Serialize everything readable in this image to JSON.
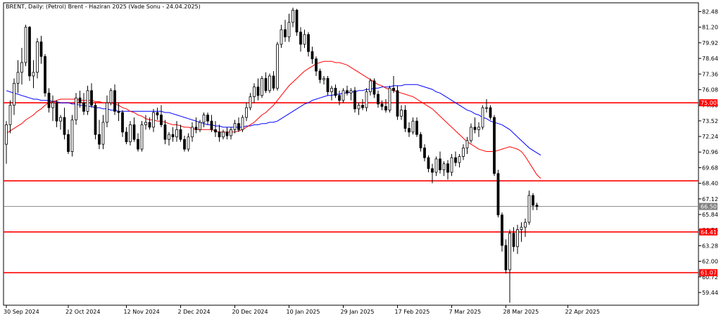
{
  "chart_data": {
    "type": "candlestick",
    "title": "BRENT, Daily:  (Petrol) Brent - Haziran 2025 (Vade Sonu - 24.04.2025)",
    "y_ticks": [
      "82.48",
      "81.20",
      "79.92",
      "78.64",
      "77.36",
      "76.08",
      "74.80",
      "73.52",
      "72.24",
      "70.96",
      "69.68",
      "68.40",
      "67.12",
      "65.84",
      "64.56",
      "63.28",
      "62.00",
      "60.72",
      "59.44"
    ],
    "x_ticks": [
      "30 Sep 2024",
      "22 Oct 2024",
      "12 Nov 2024",
      "2 Dec 2024",
      "20 Dec 2024",
      "10 Jan 2025",
      "29 Jan 2025",
      "17 Feb 2025",
      "7 Mar 2025",
      "28 Mar 2025",
      "22 Apr 2025"
    ],
    "x_tick_index": [
      0,
      16,
      31,
      45,
      59,
      73,
      87,
      101,
      115,
      129,
      145
    ],
    "ylim": [
      58.4,
      83.2
    ],
    "grid": false,
    "horizontal_levels": [
      {
        "value": 75.0,
        "label": "75.00",
        "color": "#ff0000"
      },
      {
        "value": 68.6,
        "label": "",
        "color": "#ff0000"
      },
      {
        "value": 64.41,
        "label": "64.41",
        "color": "#ff0000"
      },
      {
        "value": 61.07,
        "label": "61.07",
        "color": "#ff0000"
      }
    ],
    "current_price": {
      "value": 66.5,
      "label": "66.50",
      "color": "#808080"
    },
    "candles": [
      {
        "o": 71.6,
        "h": 73.5,
        "l": 70.0,
        "c": 73.2
      },
      {
        "o": 73.2,
        "h": 75.2,
        "l": 72.5,
        "c": 74.8
      },
      {
        "o": 74.8,
        "h": 77.0,
        "l": 74.0,
        "c": 76.6
      },
      {
        "o": 76.6,
        "h": 78.5,
        "l": 75.8,
        "c": 77.5
      },
      {
        "o": 77.5,
        "h": 79.5,
        "l": 76.5,
        "c": 78.3
      },
      {
        "o": 78.3,
        "h": 81.4,
        "l": 78.0,
        "c": 81.2
      },
      {
        "o": 81.2,
        "h": 81.3,
        "l": 76.8,
        "c": 77.2
      },
      {
        "o": 77.2,
        "h": 78.5,
        "l": 76.2,
        "c": 77.5
      },
      {
        "o": 77.5,
        "h": 80.3,
        "l": 77.0,
        "c": 80.0
      },
      {
        "o": 80.0,
        "h": 80.5,
        "l": 78.2,
        "c": 78.8
      },
      {
        "o": 78.8,
        "h": 79.0,
        "l": 75.5,
        "c": 75.8
      },
      {
        "o": 75.8,
        "h": 76.2,
        "l": 74.2,
        "c": 74.6
      },
      {
        "o": 74.6,
        "h": 75.6,
        "l": 73.5,
        "c": 75.0
      },
      {
        "o": 75.0,
        "h": 75.2,
        "l": 73.0,
        "c": 73.5
      },
      {
        "o": 73.5,
        "h": 74.0,
        "l": 72.8,
        "c": 73.8
      },
      {
        "o": 73.8,
        "h": 74.6,
        "l": 72.0,
        "c": 72.4
      },
      {
        "o": 72.4,
        "h": 72.8,
        "l": 70.8,
        "c": 71.0
      },
      {
        "o": 71.0,
        "h": 74.0,
        "l": 70.6,
        "c": 73.6
      },
      {
        "o": 73.6,
        "h": 75.8,
        "l": 73.2,
        "c": 75.4
      },
      {
        "o": 75.4,
        "h": 76.0,
        "l": 74.6,
        "c": 75.0
      },
      {
        "o": 75.0,
        "h": 75.8,
        "l": 74.0,
        "c": 74.3
      },
      {
        "o": 74.3,
        "h": 76.4,
        "l": 74.0,
        "c": 76.0
      },
      {
        "o": 76.0,
        "h": 76.6,
        "l": 74.6,
        "c": 74.8
      },
      {
        "o": 74.8,
        "h": 75.0,
        "l": 72.0,
        "c": 72.4
      },
      {
        "o": 72.4,
        "h": 73.6,
        "l": 71.2,
        "c": 71.6
      },
      {
        "o": 71.6,
        "h": 74.0,
        "l": 71.2,
        "c": 73.4
      },
      {
        "o": 73.4,
        "h": 75.6,
        "l": 73.0,
        "c": 75.0
      },
      {
        "o": 75.0,
        "h": 76.2,
        "l": 74.8,
        "c": 76.0
      },
      {
        "o": 76.0,
        "h": 76.5,
        "l": 74.0,
        "c": 74.3
      },
      {
        "o": 74.3,
        "h": 75.0,
        "l": 73.5,
        "c": 74.2
      },
      {
        "o": 74.2,
        "h": 74.4,
        "l": 72.2,
        "c": 72.6
      },
      {
        "o": 72.6,
        "h": 73.0,
        "l": 71.6,
        "c": 71.8
      },
      {
        "o": 71.8,
        "h": 73.5,
        "l": 71.5,
        "c": 73.2
      },
      {
        "o": 73.2,
        "h": 73.8,
        "l": 71.8,
        "c": 72.0
      },
      {
        "o": 72.0,
        "h": 72.5,
        "l": 71.0,
        "c": 71.2
      },
      {
        "o": 71.2,
        "h": 73.5,
        "l": 71.0,
        "c": 73.2
      },
      {
        "o": 73.2,
        "h": 74.0,
        "l": 72.8,
        "c": 73.4
      },
      {
        "o": 73.4,
        "h": 73.8,
        "l": 72.8,
        "c": 73.0
      },
      {
        "o": 73.0,
        "h": 74.5,
        "l": 72.6,
        "c": 74.2
      },
      {
        "o": 74.2,
        "h": 74.6,
        "l": 73.6,
        "c": 74.0
      },
      {
        "o": 74.0,
        "h": 74.8,
        "l": 73.0,
        "c": 73.2
      },
      {
        "o": 73.2,
        "h": 73.6,
        "l": 71.6,
        "c": 72.0
      },
      {
        "o": 72.0,
        "h": 72.6,
        "l": 71.5,
        "c": 72.4
      },
      {
        "o": 72.4,
        "h": 73.0,
        "l": 71.8,
        "c": 72.2
      },
      {
        "o": 72.2,
        "h": 73.5,
        "l": 71.8,
        "c": 72.8
      },
      {
        "o": 72.8,
        "h": 73.2,
        "l": 71.8,
        "c": 72.0
      },
      {
        "o": 72.0,
        "h": 72.3,
        "l": 71.0,
        "c": 71.2
      },
      {
        "o": 71.2,
        "h": 72.5,
        "l": 71.0,
        "c": 72.2
      },
      {
        "o": 72.2,
        "h": 73.4,
        "l": 71.8,
        "c": 73.0
      },
      {
        "o": 73.0,
        "h": 73.8,
        "l": 72.5,
        "c": 72.8
      },
      {
        "o": 72.8,
        "h": 73.6,
        "l": 72.6,
        "c": 73.4
      },
      {
        "o": 73.4,
        "h": 74.2,
        "l": 73.0,
        "c": 74.0
      },
      {
        "o": 74.0,
        "h": 74.2,
        "l": 73.2,
        "c": 73.5
      },
      {
        "o": 73.5,
        "h": 74.0,
        "l": 72.6,
        "c": 72.8
      },
      {
        "o": 72.8,
        "h": 73.5,
        "l": 72.2,
        "c": 72.6
      },
      {
        "o": 72.6,
        "h": 73.2,
        "l": 71.8,
        "c": 72.2
      },
      {
        "o": 72.2,
        "h": 72.8,
        "l": 72.0,
        "c": 72.6
      },
      {
        "o": 72.6,
        "h": 73.0,
        "l": 72.0,
        "c": 72.3
      },
      {
        "o": 72.3,
        "h": 73.0,
        "l": 72.0,
        "c": 72.8
      },
      {
        "o": 72.8,
        "h": 73.6,
        "l": 72.5,
        "c": 73.3
      },
      {
        "o": 73.3,
        "h": 73.8,
        "l": 72.6,
        "c": 72.8
      },
      {
        "o": 72.8,
        "h": 74.0,
        "l": 72.6,
        "c": 73.8
      },
      {
        "o": 73.8,
        "h": 75.0,
        "l": 73.5,
        "c": 74.6
      },
      {
        "o": 74.6,
        "h": 75.8,
        "l": 74.4,
        "c": 75.5
      },
      {
        "o": 75.5,
        "h": 76.6,
        "l": 75.0,
        "c": 76.3
      },
      {
        "o": 76.3,
        "h": 77.0,
        "l": 75.2,
        "c": 75.6
      },
      {
        "o": 75.6,
        "h": 77.2,
        "l": 75.4,
        "c": 77.0
      },
      {
        "o": 77.0,
        "h": 77.5,
        "l": 75.8,
        "c": 76.0
      },
      {
        "o": 76.0,
        "h": 77.4,
        "l": 75.8,
        "c": 77.2
      },
      {
        "o": 77.2,
        "h": 77.6,
        "l": 76.0,
        "c": 76.2
      },
      {
        "o": 76.2,
        "h": 80.0,
        "l": 76.0,
        "c": 79.8
      },
      {
        "o": 79.8,
        "h": 81.4,
        "l": 79.5,
        "c": 81.0
      },
      {
        "o": 81.0,
        "h": 81.8,
        "l": 80.0,
        "c": 80.4
      },
      {
        "o": 80.4,
        "h": 82.3,
        "l": 80.0,
        "c": 81.6
      },
      {
        "o": 81.6,
        "h": 82.8,
        "l": 81.2,
        "c": 82.6
      },
      {
        "o": 82.6,
        "h": 82.7,
        "l": 80.5,
        "c": 80.8
      },
      {
        "o": 80.8,
        "h": 81.2,
        "l": 79.2,
        "c": 79.8
      },
      {
        "o": 79.8,
        "h": 81.0,
        "l": 79.5,
        "c": 80.6
      },
      {
        "o": 80.6,
        "h": 80.8,
        "l": 78.8,
        "c": 79.2
      },
      {
        "o": 79.2,
        "h": 79.6,
        "l": 78.2,
        "c": 78.6
      },
      {
        "o": 78.6,
        "h": 78.8,
        "l": 77.2,
        "c": 77.6
      },
      {
        "o": 77.6,
        "h": 77.8,
        "l": 76.6,
        "c": 76.9
      },
      {
        "o": 76.9,
        "h": 77.2,
        "l": 76.5,
        "c": 77.0
      },
      {
        "o": 77.0,
        "h": 77.2,
        "l": 75.6,
        "c": 75.9
      },
      {
        "o": 75.9,
        "h": 76.4,
        "l": 75.2,
        "c": 76.2
      },
      {
        "o": 76.2,
        "h": 76.5,
        "l": 75.4,
        "c": 75.6
      },
      {
        "o": 75.6,
        "h": 76.0,
        "l": 74.8,
        "c": 75.2
      },
      {
        "o": 75.2,
        "h": 76.2,
        "l": 75.0,
        "c": 76.0
      },
      {
        "o": 76.0,
        "h": 76.4,
        "l": 75.6,
        "c": 75.8
      },
      {
        "o": 75.8,
        "h": 76.2,
        "l": 75.2,
        "c": 76.0
      },
      {
        "o": 76.0,
        "h": 76.3,
        "l": 74.2,
        "c": 74.5
      },
      {
        "o": 74.5,
        "h": 75.0,
        "l": 74.0,
        "c": 74.8
      },
      {
        "o": 74.8,
        "h": 75.3,
        "l": 74.4,
        "c": 74.6
      },
      {
        "o": 74.6,
        "h": 76.2,
        "l": 74.3,
        "c": 75.9
      },
      {
        "o": 75.9,
        "h": 77.0,
        "l": 75.6,
        "c": 76.8
      },
      {
        "o": 76.8,
        "h": 77.0,
        "l": 75.4,
        "c": 75.7
      },
      {
        "o": 75.7,
        "h": 76.0,
        "l": 74.6,
        "c": 74.9
      },
      {
        "o": 74.9,
        "h": 75.2,
        "l": 74.4,
        "c": 74.7
      },
      {
        "o": 74.7,
        "h": 75.3,
        "l": 74.2,
        "c": 74.4
      },
      {
        "o": 74.4,
        "h": 76.4,
        "l": 74.2,
        "c": 76.2
      },
      {
        "o": 76.2,
        "h": 77.2,
        "l": 75.8,
        "c": 76.0
      },
      {
        "o": 76.0,
        "h": 76.4,
        "l": 73.6,
        "c": 73.9
      },
      {
        "o": 73.9,
        "h": 74.8,
        "l": 73.6,
        "c": 74.4
      },
      {
        "o": 74.4,
        "h": 74.8,
        "l": 72.6,
        "c": 72.9
      },
      {
        "o": 72.9,
        "h": 73.4,
        "l": 72.2,
        "c": 72.6
      },
      {
        "o": 72.6,
        "h": 73.8,
        "l": 72.4,
        "c": 73.5
      },
      {
        "o": 73.5,
        "h": 73.8,
        "l": 72.2,
        "c": 72.4
      },
      {
        "o": 72.4,
        "h": 72.6,
        "l": 71.0,
        "c": 71.3
      },
      {
        "o": 71.3,
        "h": 71.6,
        "l": 70.2,
        "c": 70.5
      },
      {
        "o": 70.5,
        "h": 70.7,
        "l": 69.3,
        "c": 69.6
      },
      {
        "o": 69.6,
        "h": 70.0,
        "l": 68.4,
        "c": 69.3
      },
      {
        "o": 69.3,
        "h": 70.6,
        "l": 69.0,
        "c": 70.4
      },
      {
        "o": 70.4,
        "h": 71.0,
        "l": 69.2,
        "c": 69.5
      },
      {
        "o": 69.5,
        "h": 70.2,
        "l": 69.0,
        "c": 70.0
      },
      {
        "o": 70.0,
        "h": 70.3,
        "l": 68.7,
        "c": 69.3
      },
      {
        "o": 69.3,
        "h": 70.8,
        "l": 69.0,
        "c": 70.5
      },
      {
        "o": 70.5,
        "h": 71.0,
        "l": 69.8,
        "c": 70.1
      },
      {
        "o": 70.1,
        "h": 70.8,
        "l": 69.7,
        "c": 70.6
      },
      {
        "o": 70.6,
        "h": 71.6,
        "l": 70.3,
        "c": 71.3
      },
      {
        "o": 71.3,
        "h": 72.2,
        "l": 70.8,
        "c": 71.9
      },
      {
        "o": 71.9,
        "h": 73.3,
        "l": 71.7,
        "c": 73.0
      },
      {
        "o": 73.0,
        "h": 73.8,
        "l": 72.5,
        "c": 72.8
      },
      {
        "o": 72.8,
        "h": 73.4,
        "l": 72.2,
        "c": 73.0
      },
      {
        "o": 73.0,
        "h": 74.8,
        "l": 72.8,
        "c": 74.6
      },
      {
        "o": 74.6,
        "h": 75.3,
        "l": 74.2,
        "c": 74.6
      },
      {
        "o": 74.6,
        "h": 74.8,
        "l": 73.6,
        "c": 73.8
      },
      {
        "o": 73.8,
        "h": 74.0,
        "l": 69.0,
        "c": 69.2
      },
      {
        "o": 69.2,
        "h": 69.5,
        "l": 65.6,
        "c": 65.8
      },
      {
        "o": 65.8,
        "h": 66.0,
        "l": 62.8,
        "c": 63.3
      },
      {
        "o": 63.3,
        "h": 63.8,
        "l": 61.0,
        "c": 61.3
      },
      {
        "o": 61.3,
        "h": 64.6,
        "l": 58.6,
        "c": 64.3
      },
      {
        "o": 64.3,
        "h": 64.8,
        "l": 62.8,
        "c": 63.2
      },
      {
        "o": 63.2,
        "h": 65.0,
        "l": 62.6,
        "c": 64.6
      },
      {
        "o": 64.6,
        "h": 65.2,
        "l": 63.6,
        "c": 64.8
      },
      {
        "o": 64.8,
        "h": 65.5,
        "l": 64.0,
        "c": 65.2
      },
      {
        "o": 65.2,
        "h": 67.8,
        "l": 65.0,
        "c": 67.4
      },
      {
        "o": 67.4,
        "h": 67.6,
        "l": 66.2,
        "c": 66.6
      },
      {
        "o": 66.6,
        "h": 66.8,
        "l": 66.2,
        "c": 66.5
      }
    ],
    "ma_fast": {
      "color": "#ff0000",
      "values": [
        72.5,
        72.7,
        72.9,
        73.1,
        73.3,
        73.6,
        73.8,
        74.0,
        74.3,
        74.5,
        74.8,
        75.0,
        75.1,
        75.2,
        75.3,
        75.3,
        75.3,
        75.3,
        75.3,
        75.2,
        75.2,
        75.2,
        75.2,
        75.1,
        75.1,
        75.0,
        75.0,
        75.0,
        74.9,
        74.8,
        74.6,
        74.5,
        74.3,
        74.2,
        74.0,
        73.9,
        73.7,
        73.6,
        73.6,
        73.5,
        73.5,
        73.4,
        73.3,
        73.2,
        73.2,
        73.1,
        73.0,
        73.0,
        72.9,
        72.8,
        72.8,
        72.8,
        72.8,
        72.8,
        72.7,
        72.6,
        72.6,
        72.6,
        72.6,
        72.6,
        72.7,
        72.8,
        73.0,
        73.2,
        73.4,
        73.7,
        74.0,
        74.2,
        74.5,
        74.8,
        75.2,
        75.6,
        76.0,
        76.4,
        76.7,
        77.0,
        77.3,
        77.6,
        77.8,
        78.0,
        78.2,
        78.3,
        78.4,
        78.4,
        78.4,
        78.3,
        78.3,
        78.2,
        78.1,
        77.9,
        77.7,
        77.5,
        77.3,
        77.1,
        76.9,
        76.7,
        76.5,
        76.4,
        76.2,
        76.1,
        76.0,
        75.9,
        75.8,
        75.7,
        75.6,
        75.5,
        75.3,
        75.1,
        74.9,
        74.7,
        74.5,
        74.2,
        73.9,
        73.6,
        73.3,
        73.0,
        72.7,
        72.4,
        72.1,
        71.8,
        71.6,
        71.4,
        71.2,
        71.1,
        71.0,
        71.0,
        71.0,
        71.1,
        71.2,
        71.3,
        71.4,
        71.3,
        71.2,
        71.0,
        70.6,
        70.1,
        69.6,
        69.1,
        68.8
      ]
    },
    "ma_slow": {
      "color": "#0000ff",
      "values": [
        76.0,
        75.9,
        75.8,
        75.7,
        75.6,
        75.5,
        75.4,
        75.3,
        75.3,
        75.2,
        75.2,
        75.2,
        75.1,
        75.1,
        75.0,
        75.0,
        75.0,
        74.9,
        74.9,
        74.8,
        74.8,
        74.7,
        74.7,
        74.6,
        74.6,
        74.5,
        74.5,
        74.4,
        74.4,
        74.3,
        74.3,
        74.3,
        74.3,
        74.3,
        74.3,
        74.3,
        74.3,
        74.3,
        74.3,
        74.3,
        74.3,
        74.2,
        74.2,
        74.1,
        74.0,
        73.9,
        73.8,
        73.7,
        73.6,
        73.5,
        73.4,
        73.3,
        73.2,
        73.2,
        73.1,
        73.1,
        73.0,
        73.0,
        73.0,
        73.0,
        73.0,
        73.0,
        73.1,
        73.1,
        73.2,
        73.2,
        73.3,
        73.3,
        73.4,
        73.4,
        73.5,
        73.7,
        73.9,
        74.1,
        74.3,
        74.5,
        74.7,
        74.9,
        75.0,
        75.2,
        75.3,
        75.4,
        75.5,
        75.6,
        75.6,
        75.7,
        75.7,
        75.8,
        75.8,
        75.9,
        75.9,
        76.0,
        76.0,
        76.1,
        76.1,
        76.2,
        76.2,
        76.3,
        76.3,
        76.3,
        76.4,
        76.4,
        76.4,
        76.5,
        76.5,
        76.5,
        76.5,
        76.4,
        76.3,
        76.2,
        76.1,
        75.9,
        75.8,
        75.6,
        75.4,
        75.2,
        75.0,
        74.8,
        74.6,
        74.4,
        74.3,
        74.1,
        74.0,
        73.8,
        73.7,
        73.5,
        73.4,
        73.3,
        73.2,
        73.0,
        72.8,
        72.5,
        72.2,
        71.9,
        71.6,
        71.3,
        71.1,
        70.9,
        70.7
      ]
    }
  }
}
